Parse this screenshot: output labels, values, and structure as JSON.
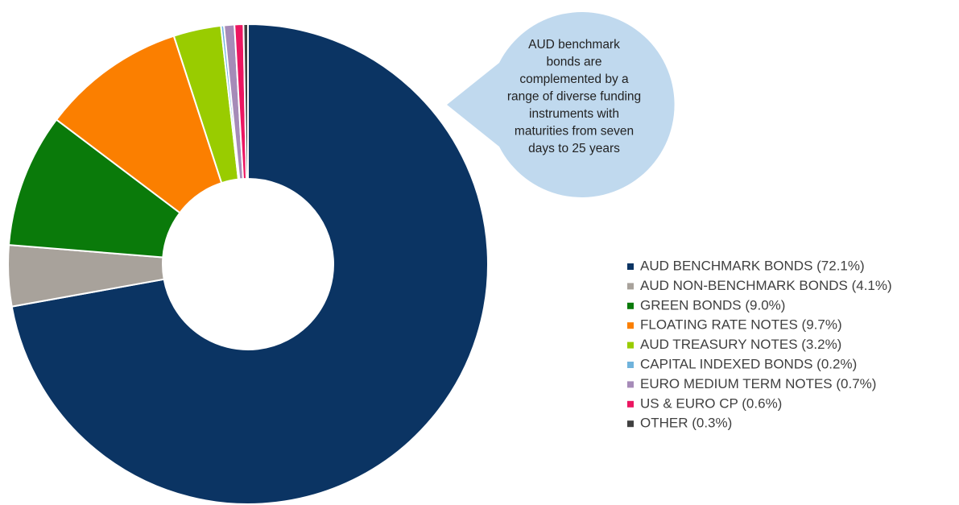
{
  "chart_data": {
    "type": "donut",
    "categories": [
      "AUD BENCHMARK BONDS (72.1%)",
      "AUD NON-BENCHMARK BONDS (4.1%)",
      "GREEN BONDS (9.0%)",
      "FLOATING RATE NOTES (9.7%)",
      "AUD TREASURY NOTES (3.2%)",
      "CAPITAL INDEXED BONDS (0.2%)",
      "EURO MEDIUM TERM NOTES (0.7%)",
      "US & EURO CP (0.6%)",
      "OTHER (0.3%)"
    ],
    "values": [
      72.1,
      4.1,
      9.0,
      9.7,
      3.2,
      0.2,
      0.7,
      0.6,
      0.3
    ],
    "colors": [
      "#0b3463",
      "#a8a29b",
      "#0a7a0a",
      "#fb7f00",
      "#99cc00",
      "#70b3dc",
      "#a68bb8",
      "#ec1661",
      "#404040"
    ],
    "annotation": [
      "AUD benchmark",
      "bonds are",
      "complemented by a",
      "range of diverse funding",
      "instruments with",
      "maturities from seven",
      "days to 25 years"
    ],
    "legend": "right"
  }
}
